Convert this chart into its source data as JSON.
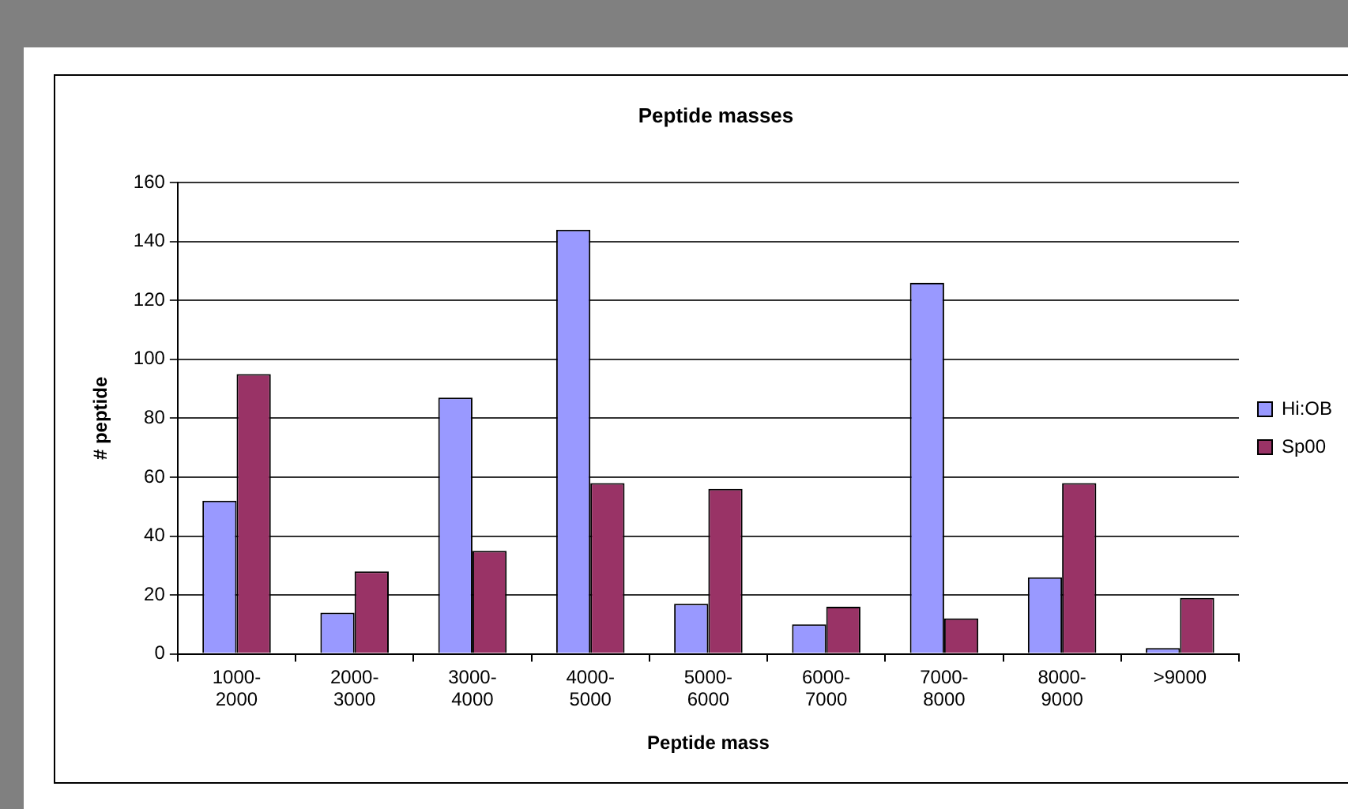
{
  "chart_data": {
    "type": "bar",
    "title": "Peptide masses",
    "xlabel": "Peptide mass",
    "ylabel": "# peptide",
    "categories": [
      "1000-2000",
      "2000-3000",
      "3000-4000",
      "4000-5000",
      "5000-6000",
      "6000-7000",
      "7000-8000",
      "8000-9000",
      ">9000"
    ],
    "series": [
      {
        "name": "Hi:OB",
        "color": "#9999ff",
        "values": [
          52,
          14,
          87,
          144,
          17,
          10,
          126,
          26,
          2
        ]
      },
      {
        "name": "Sp00",
        "color": "#993366",
        "values": [
          95,
          28,
          35,
          58,
          56,
          16,
          12,
          58,
          19
        ]
      }
    ],
    "ylim": [
      0,
      160
    ],
    "yticks": [
      0,
      20,
      40,
      60,
      80,
      100,
      120,
      140,
      160
    ],
    "grid": "y",
    "legend": "right"
  }
}
